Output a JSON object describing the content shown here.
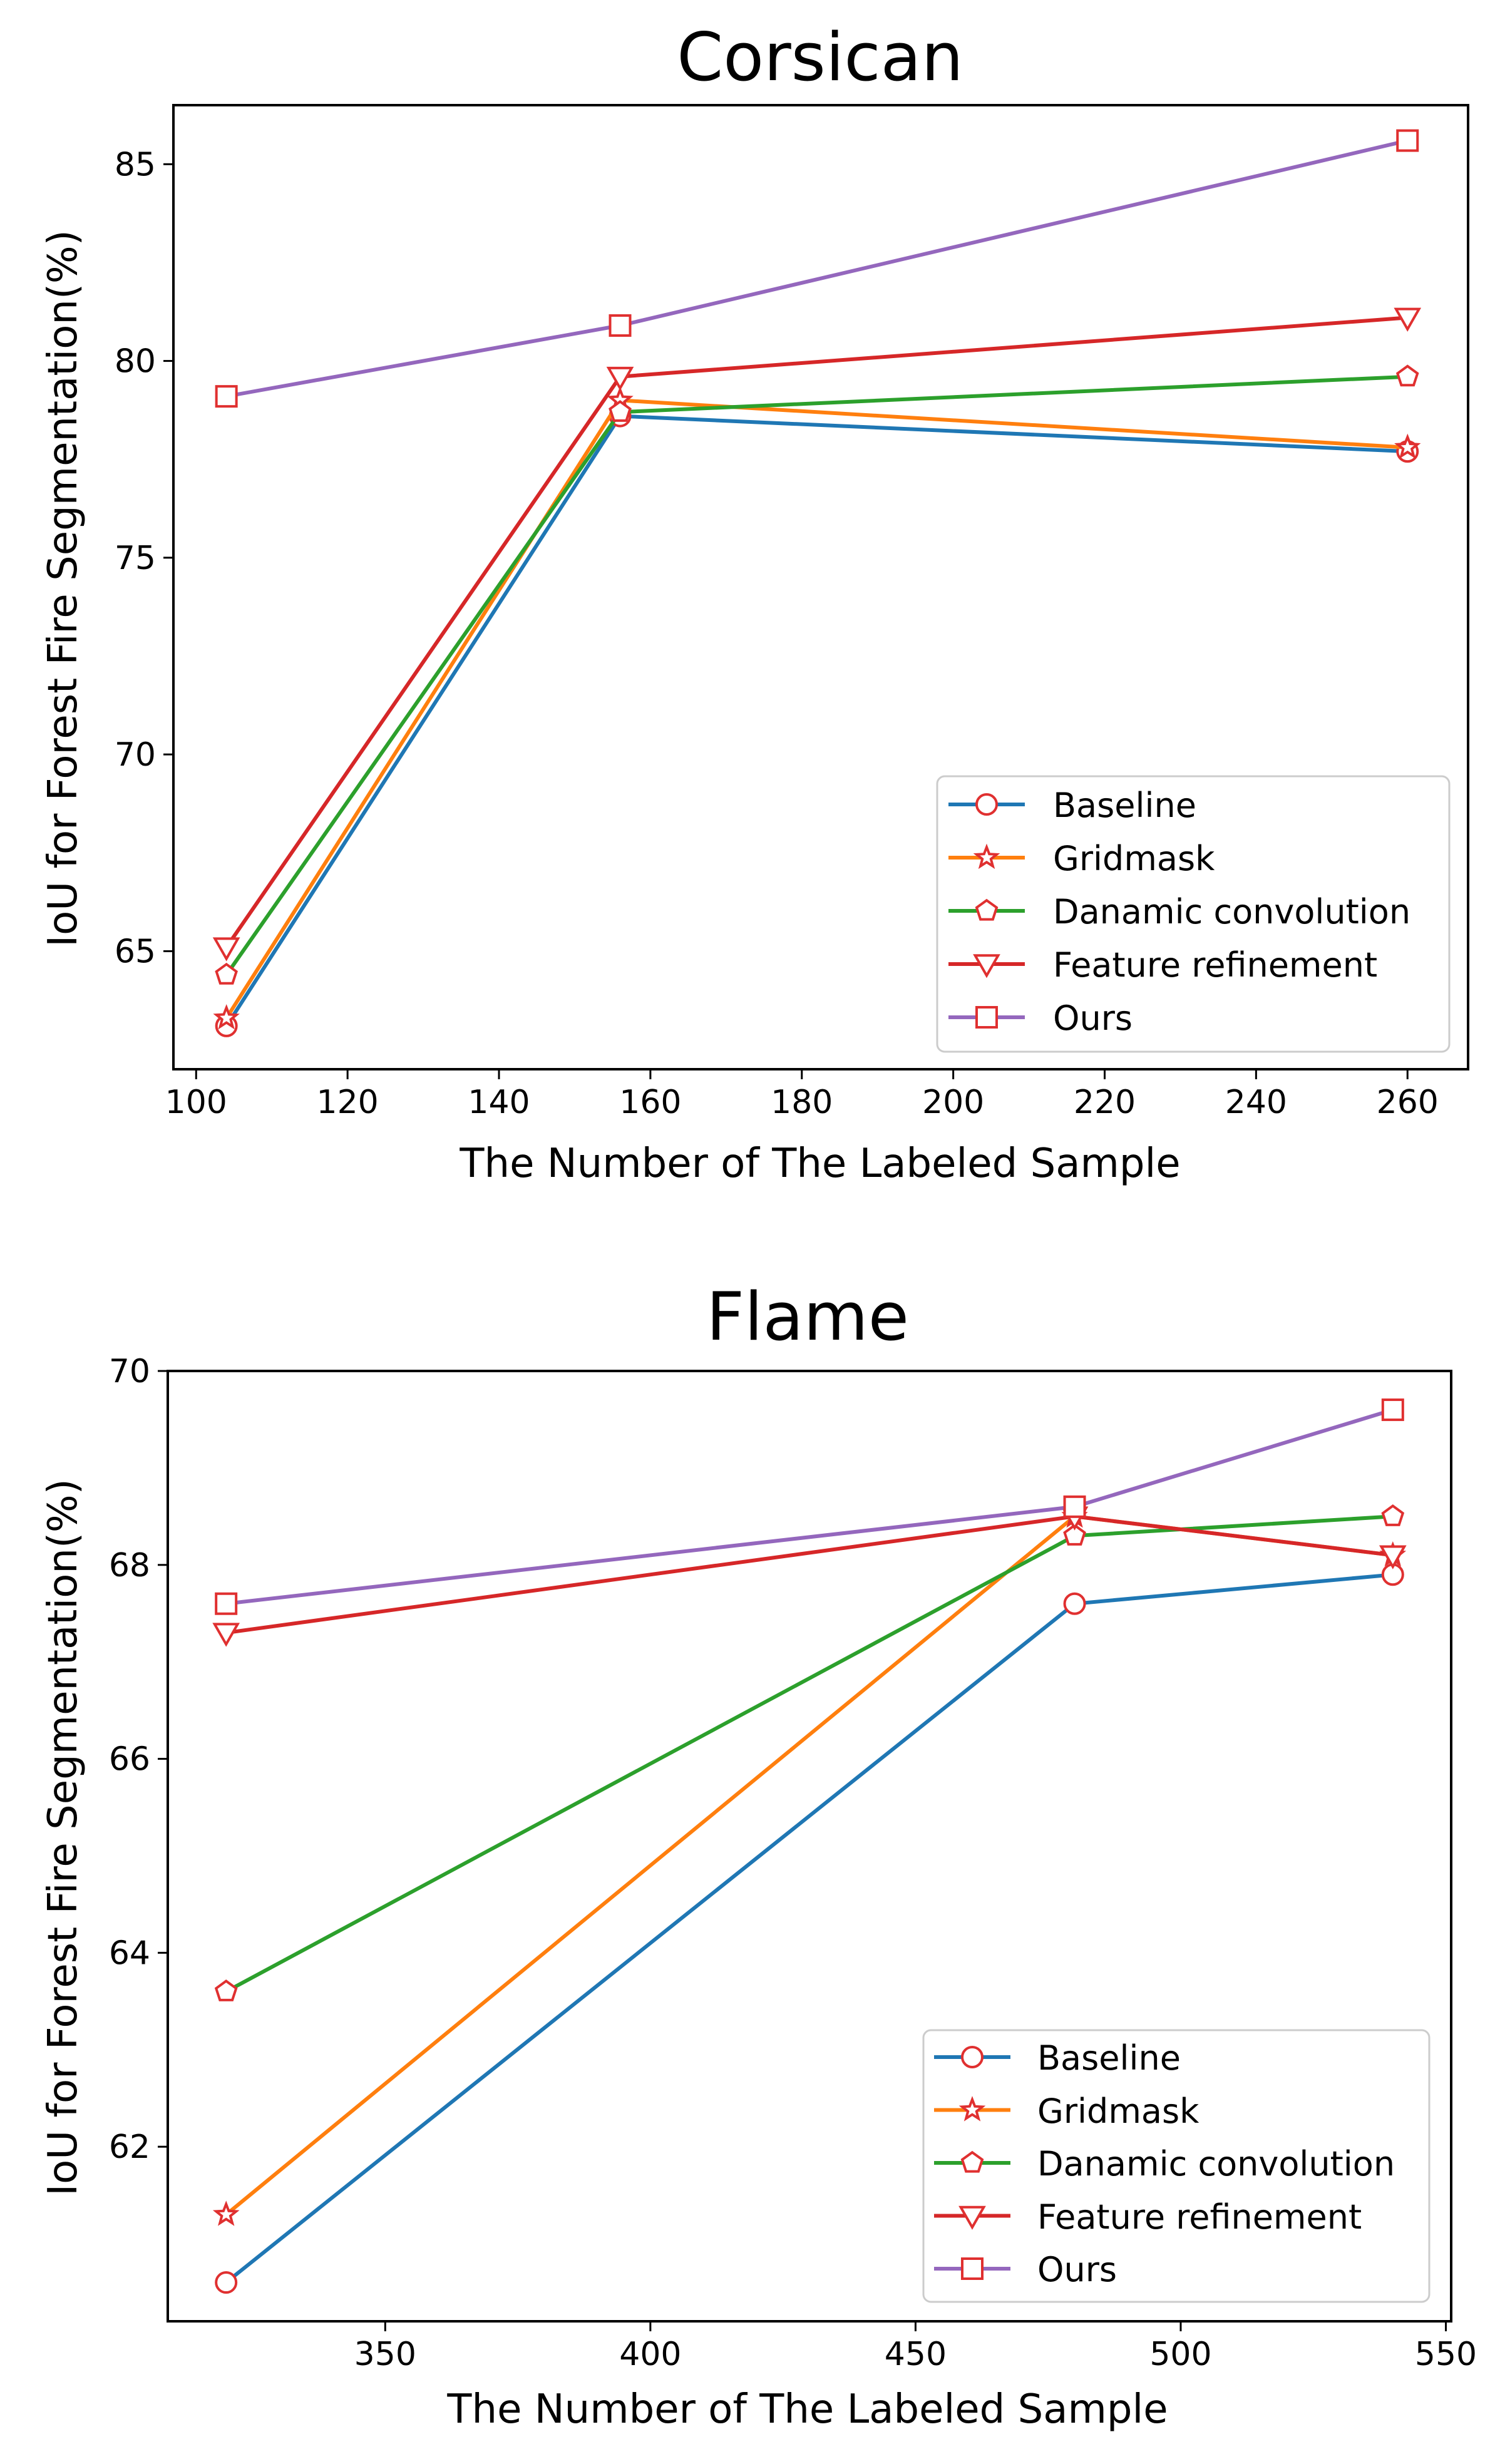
{
  "chart_data": [
    {
      "type": "line",
      "title": "Corsican",
      "xlabel": "The Number of The Labeled Sample",
      "ylabel": "IoU for Forest Fire Segmentation(%)",
      "xlim": [
        97,
        268
      ],
      "ylim": [
        62.0,
        86.5
      ],
      "xticks": [
        100,
        120,
        140,
        160,
        180,
        200,
        220,
        240,
        260
      ],
      "yticks": [
        65,
        70,
        75,
        80,
        85
      ],
      "x": [
        104,
        156,
        260
      ],
      "legend_position": "lower right",
      "series": [
        {
          "name": "Baseline",
          "values": [
            63.1,
            78.6,
            77.7
          ],
          "color": "#1f77b4",
          "marker": "circle"
        },
        {
          "name": "Gridmask",
          "values": [
            63.3,
            79.0,
            77.8
          ],
          "color": "#ff7f0e",
          "marker": "star"
        },
        {
          "name": "Danamic convolution",
          "values": [
            64.4,
            78.7,
            79.6
          ],
          "color": "#2ca02c",
          "marker": "pentagon"
        },
        {
          "name": "Feature refinement",
          "values": [
            65.1,
            79.6,
            81.1
          ],
          "color": "#d62728",
          "marker": "triangle-down"
        },
        {
          "name": "Ours",
          "values": [
            79.1,
            80.9,
            85.6
          ],
          "color": "#9467bd",
          "marker": "square"
        }
      ]
    },
    {
      "type": "line",
      "title": "Flame",
      "xlabel": "The Number of The Labeled Sample",
      "ylabel": "IoU for Forest Fire Segmentation(%)",
      "xlim": [
        309,
        551
      ],
      "ylim": [
        60.2,
        70.0
      ],
      "xticks": [
        350,
        400,
        450,
        500,
        550
      ],
      "yticks": [
        62,
        64,
        66,
        68,
        70
      ],
      "x": [
        320,
        480,
        540
      ],
      "legend_position": "lower right",
      "series": [
        {
          "name": "Baseline",
          "values": [
            60.6,
            67.6,
            67.9
          ],
          "color": "#1f77b4",
          "marker": "circle"
        },
        {
          "name": "Gridmask",
          "values": [
            61.3,
            68.5,
            68.1
          ],
          "color": "#ff7f0e",
          "marker": "star"
        },
        {
          "name": "Danamic convolution",
          "values": [
            63.6,
            68.3,
            68.5
          ],
          "color": "#2ca02c",
          "marker": "pentagon"
        },
        {
          "name": "Feature refinement",
          "values": [
            67.3,
            68.5,
            68.1
          ],
          "color": "#d62728",
          "marker": "triangle-down"
        },
        {
          "name": "Ours",
          "values": [
            67.6,
            68.6,
            69.6
          ],
          "color": "#9467bd",
          "marker": "square"
        }
      ]
    }
  ],
  "marker_color": "#e03030"
}
